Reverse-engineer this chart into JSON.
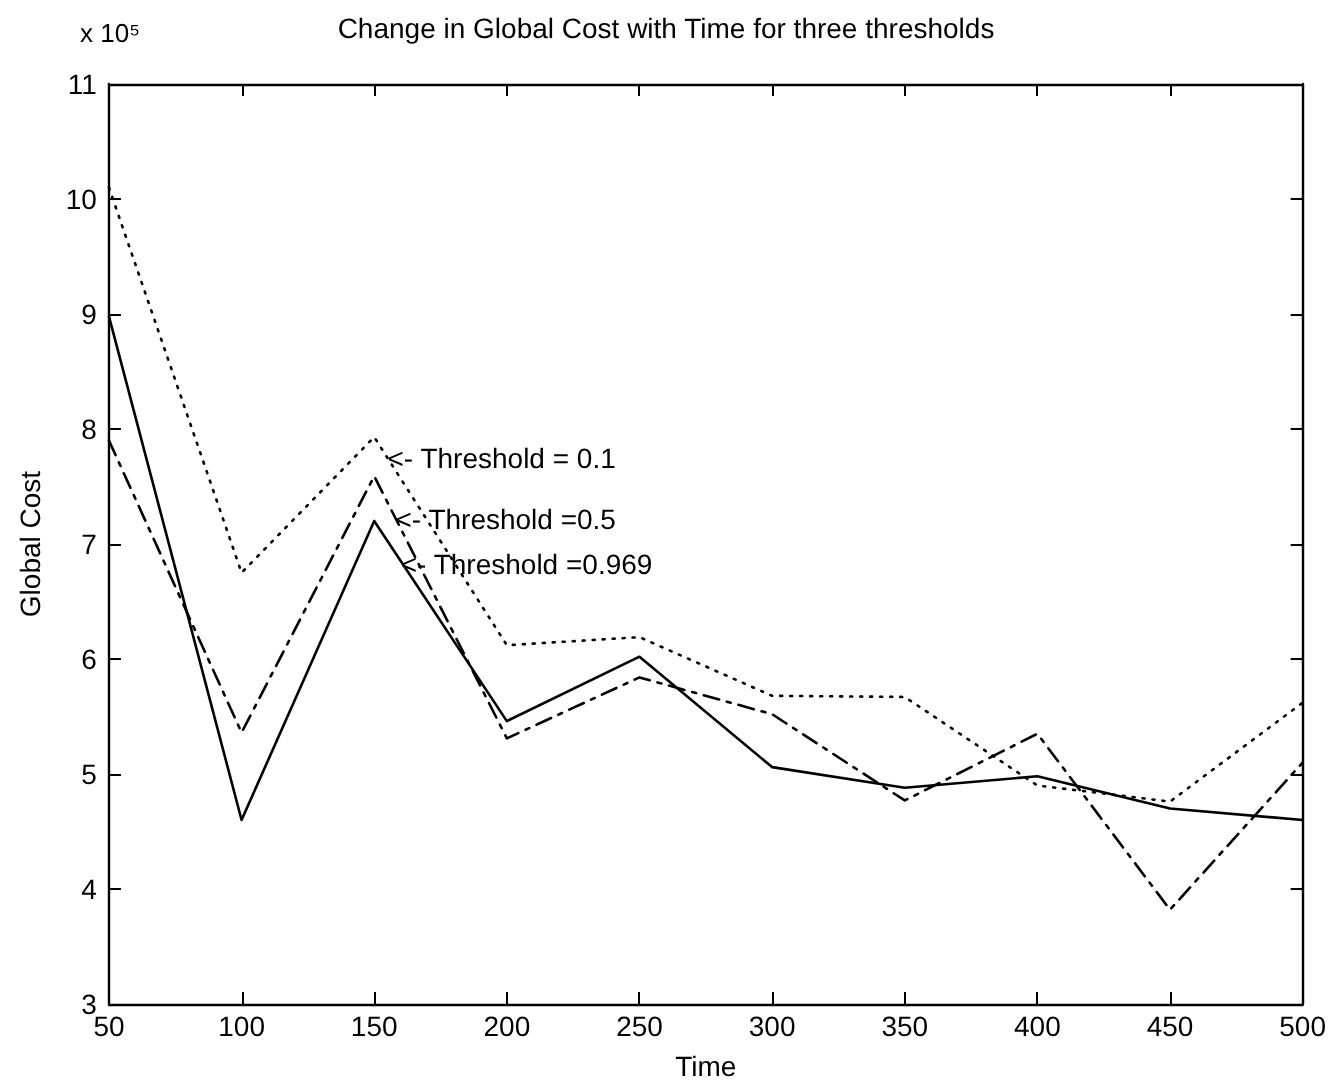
{
  "chart_data": {
    "type": "line",
    "title": "Change in Global Cost with Time for three thresholds",
    "xlabel": "Time",
    "ylabel": "Global Cost",
    "x": [
      50,
      100,
      150,
      200,
      250,
      300,
      350,
      400,
      450,
      500
    ],
    "series": [
      {
        "color": "#000000",
        "line_style": "dotted",
        "values": [
          10.1,
          6.75,
          7.93,
          6.12,
          6.19,
          5.68,
          5.67,
          4.9,
          4.76,
          5.62
        ]
      },
      {
        "color": "#000000",
        "line_style": "dashed",
        "values": [
          7.9,
          5.36,
          7.59,
          5.31,
          5.84,
          5.52,
          4.77,
          5.35,
          3.82,
          5.1
        ]
      },
      {
        "color": "#000000",
        "line_style": "solid",
        "values": [
          8.98,
          4.6,
          7.2,
          5.46,
          6.02,
          5.06,
          4.88,
          4.98,
          4.7,
          4.6
        ]
      }
    ],
    "xlim": [
      50,
      500
    ],
    "xticks": [
      50,
      100,
      150,
      200,
      250,
      300,
      350,
      400,
      450,
      500
    ],
    "ylim": [
      3,
      11
    ],
    "yticks": [
      3,
      4,
      5,
      6,
      7,
      8,
      9,
      10,
      11
    ],
    "grid": false,
    "marker": "none",
    "annotations": [
      "x 10⁵",
      {
        "text": "<- Threshold = 0.1",
        "x": 155,
        "y": 7.75
      },
      {
        "text": "<- Threshold =0.5",
        "x": 158,
        "y": 7.22
      },
      {
        "text": "<- Threshold =0.969",
        "x": 160,
        "y": 6.83
      }
    ]
  }
}
